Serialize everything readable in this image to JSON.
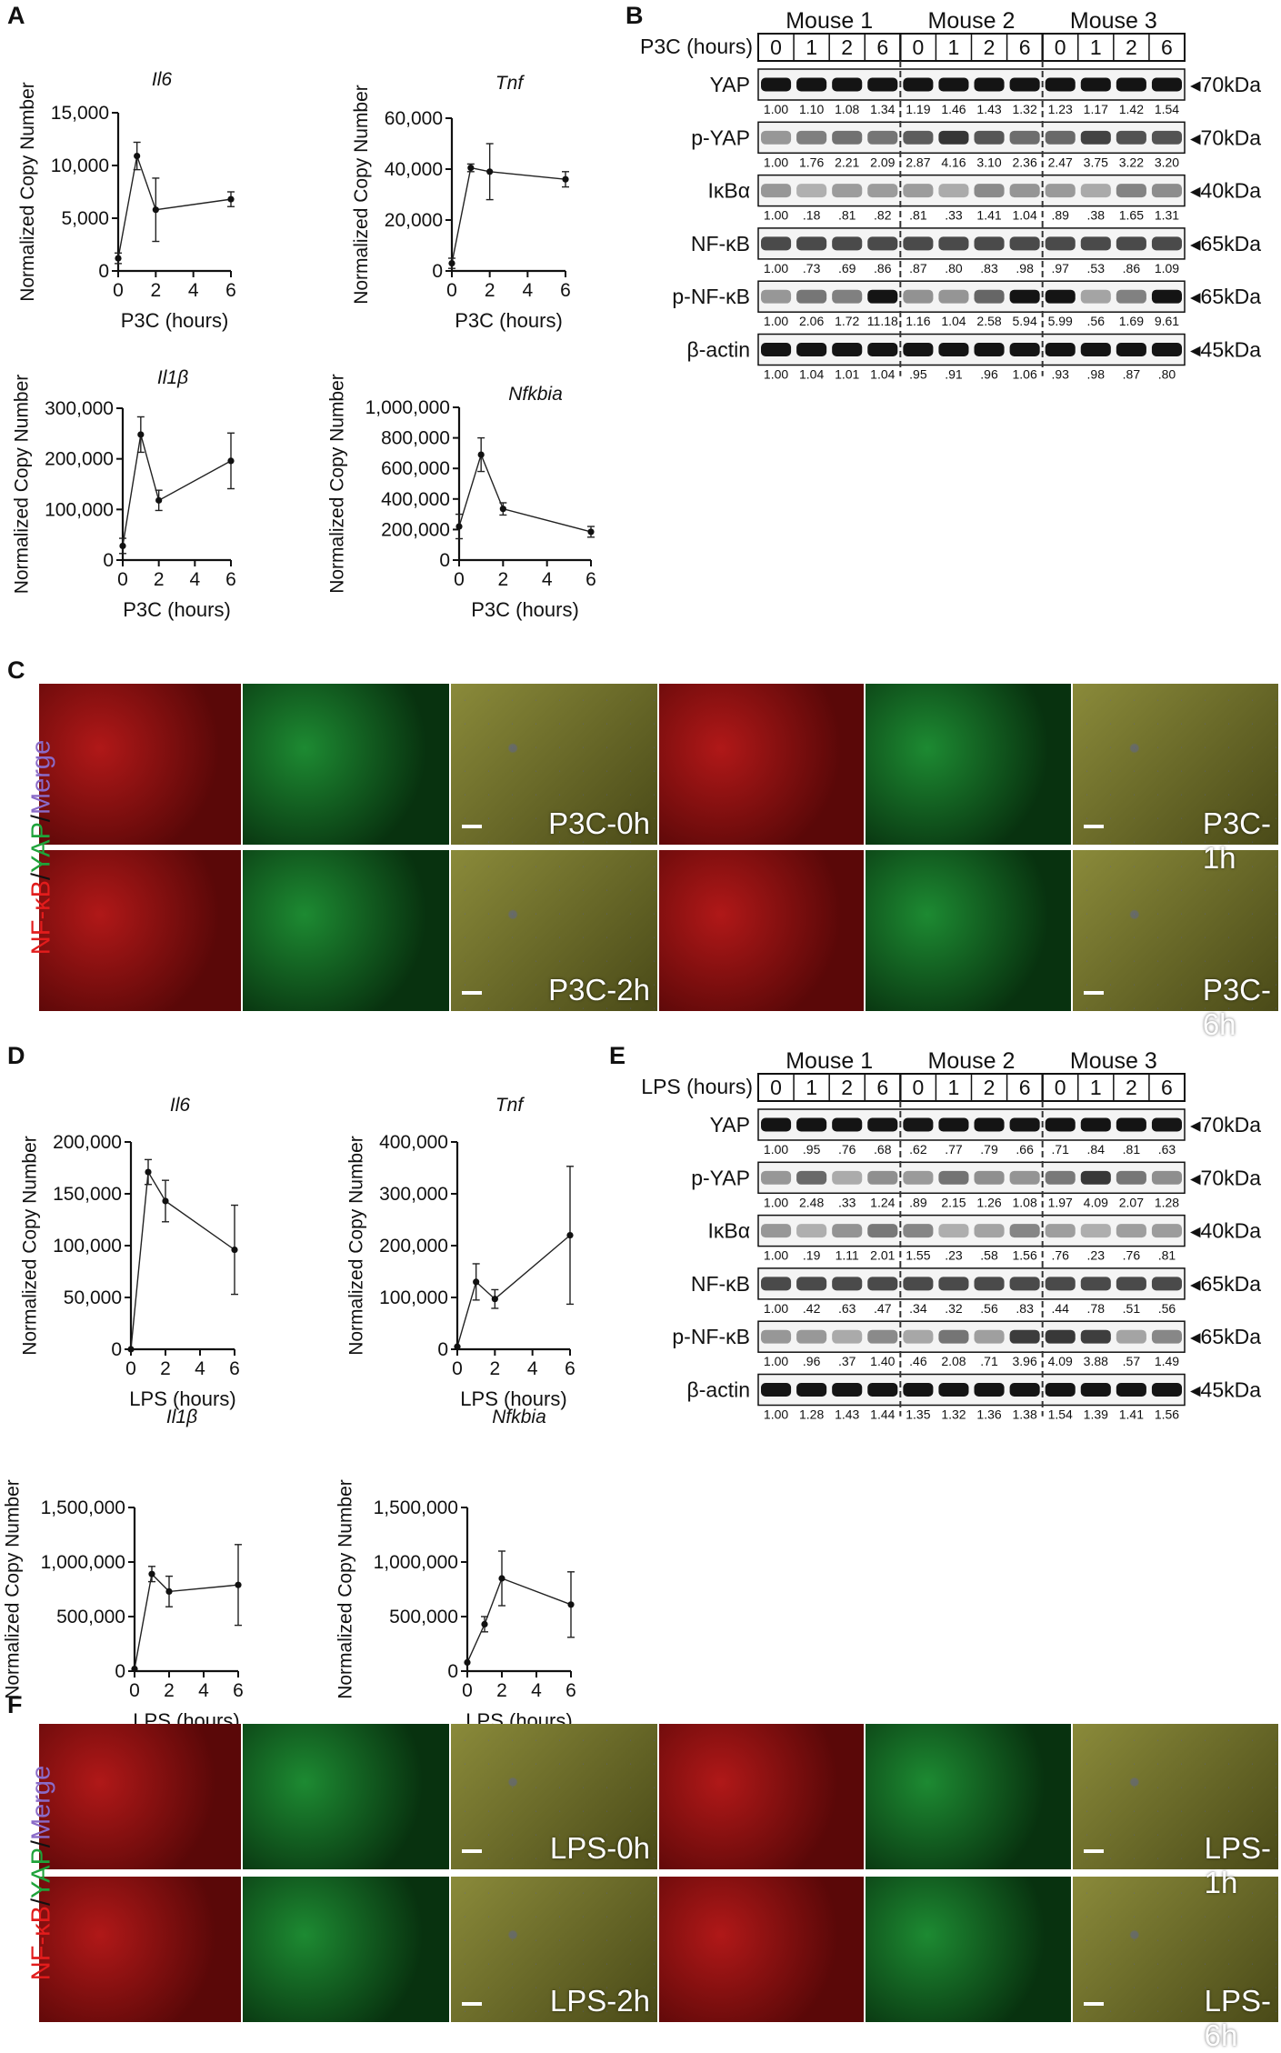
{
  "panel_labels": {
    "A": "A",
    "B": "B",
    "C": "C",
    "D": "D",
    "E": "E",
    "F": "F"
  },
  "colors": {
    "red": "#e21c1c",
    "green": "#1fa33a",
    "purple": "#8a6bc8",
    "dash": "#333333"
  },
  "chart_data": [
    {
      "type": "line",
      "title": "Il6",
      "xlabel": "P3C (hours)",
      "ylabel": "Normalized Copy Number",
      "x": [
        0,
        1,
        2,
        6
      ],
      "values": [
        1200,
        10900,
        5800,
        6800
      ],
      "errors": [
        500,
        1300,
        3000,
        700
      ],
      "ylim": [
        0,
        15000
      ],
      "yticks": [
        "0",
        "5,000",
        "10,000",
        "15,000"
      ],
      "xticks": [
        "0",
        "2",
        "4",
        "6"
      ]
    },
    {
      "type": "line",
      "title": "Tnf",
      "xlabel": "P3C (hours)",
      "ylabel": "Normalized Copy Number",
      "x": [
        0,
        1,
        2,
        6
      ],
      "values": [
        3000,
        40500,
        39000,
        36000
      ],
      "errors": [
        2000,
        1500,
        11000,
        3000
      ],
      "ylim": [
        0,
        60000
      ],
      "yticks": [
        "0",
        "20,000",
        "40,000",
        "60,000"
      ],
      "xticks": [
        "0",
        "2",
        "4",
        "6"
      ]
    },
    {
      "type": "line",
      "title": "Il1β",
      "xlabel": "P3C (hours)",
      "ylabel": "Normalized Copy Number",
      "x": [
        0,
        1,
        2,
        6
      ],
      "values": [
        28000,
        248000,
        118000,
        196000
      ],
      "errors": [
        15000,
        35000,
        20000,
        55000
      ],
      "ylim": [
        0,
        300000
      ],
      "yticks": [
        "0",
        "100,000",
        "200,000",
        "300,000"
      ],
      "xticks": [
        "0",
        "2",
        "4",
        "6"
      ]
    },
    {
      "type": "line",
      "title": "Nfkbia",
      "xlabel": "P3C (hours)",
      "ylabel": "Normalized Copy Number",
      "x": [
        0,
        1,
        2,
        6
      ],
      "values": [
        220000,
        690000,
        335000,
        185000
      ],
      "errors": [
        80000,
        110000,
        40000,
        35000
      ],
      "ylim": [
        0,
        1000000
      ],
      "yticks": [
        "0",
        "200,000",
        "400,000",
        "600,000",
        "800,000",
        "1,000,000"
      ],
      "xticks": [
        "0",
        "2",
        "4",
        "6"
      ]
    },
    {
      "type": "line",
      "title": "Il6",
      "xlabel": "LPS (hours)",
      "ylabel": "Normalized Copy Number",
      "x": [
        0,
        1,
        2,
        6
      ],
      "values": [
        0,
        171000,
        143000,
        96000
      ],
      "errors": [
        0,
        12000,
        20000,
        43000
      ],
      "ylim": [
        0,
        200000
      ],
      "yticks": [
        "0",
        "50,000",
        "100,000",
        "150,000",
        "200,000"
      ],
      "xticks": [
        "0",
        "2",
        "4",
        "6"
      ]
    },
    {
      "type": "line",
      "title": "Tnf",
      "xlabel": "LPS (hours)",
      "ylabel": "Normalized Copy Number",
      "x": [
        0,
        1,
        2,
        6
      ],
      "values": [
        5000,
        130000,
        97000,
        220000
      ],
      "errors": [
        0,
        35000,
        18000,
        133000
      ],
      "ylim": [
        0,
        400000
      ],
      "yticks": [
        "0",
        "100,000",
        "200,000",
        "300,000",
        "400,000"
      ],
      "xticks": [
        "0",
        "2",
        "4",
        "6"
      ]
    },
    {
      "type": "line",
      "title": "Il1β",
      "xlabel": "LPS (hours)",
      "ylabel": "Normalized Copy Number",
      "x": [
        0,
        1,
        2,
        6
      ],
      "values": [
        20000,
        890000,
        730000,
        790000
      ],
      "errors": [
        0,
        70000,
        140000,
        370000
      ],
      "ylim": [
        0,
        1500000
      ],
      "yticks": [
        "0",
        "500,000",
        "1,000,000",
        "1,500,000"
      ],
      "xticks": [
        "0",
        "2",
        "4",
        "6"
      ]
    },
    {
      "type": "line",
      "title": "Nfkbia",
      "xlabel": "LPS (hours)",
      "ylabel": "Normalized Copy Number",
      "x": [
        0,
        1,
        2,
        6
      ],
      "values": [
        80000,
        430000,
        850000,
        610000
      ],
      "errors": [
        0,
        70000,
        250000,
        300000
      ],
      "ylim": [
        0,
        1500000
      ],
      "yticks": [
        "0",
        "500,000",
        "1,000,000",
        "1,500,000"
      ],
      "xticks": [
        "0",
        "2",
        "4",
        "6"
      ]
    }
  ],
  "blots": [
    {
      "header_label": "P3C (hours)",
      "mice": [
        "Mouse 1",
        "Mouse 2",
        "Mouse 3"
      ],
      "lanes": [
        "0",
        "1",
        "2",
        "6",
        "0",
        "1",
        "2",
        "6",
        "0",
        "1",
        "2",
        "6"
      ],
      "rows": [
        {
          "name": "YAP",
          "kda": "◂70kDa",
          "quant": [
            "1.00",
            "1.10",
            "1.08",
            "1.34",
            "1.19",
            "1.46",
            "1.43",
            "1.32",
            "1.23",
            "1.17",
            "1.42",
            "1.54"
          ]
        },
        {
          "name": "p-YAP",
          "kda": "◂70kDa",
          "quant": [
            "1.00",
            "1.76",
            "2.21",
            "2.09",
            "2.87",
            "4.16",
            "3.10",
            "2.36",
            "2.47",
            "3.75",
            "3.22",
            "3.20"
          ]
        },
        {
          "name": "IκBα",
          "kda": "◂40kDa",
          "quant": [
            "1.00",
            ".18",
            ".81",
            ".82",
            ".81",
            ".33",
            "1.41",
            "1.04",
            ".89",
            ".38",
            "1.65",
            "1.31"
          ]
        },
        {
          "name": "NF-κB",
          "kda": "◂65kDa",
          "quant": [
            "1.00",
            ".73",
            ".69",
            ".86",
            ".87",
            ".80",
            ".83",
            ".98",
            ".97",
            ".53",
            ".86",
            "1.09"
          ]
        },
        {
          "name": "p-NF-κB",
          "kda": "◂65kDa",
          "quant": [
            "1.00",
            "2.06",
            "1.72",
            "11.18",
            "1.16",
            "1.04",
            "2.58",
            "5.94",
            "5.99",
            ".56",
            "1.69",
            "9.61"
          ]
        },
        {
          "name": "β-actin",
          "kda": "◂45kDa",
          "quant": [
            "1.00",
            "1.04",
            "1.01",
            "1.04",
            ".95",
            ".91",
            ".96",
            "1.06",
            ".93",
            ".98",
            ".87",
            ".80"
          ]
        }
      ]
    },
    {
      "header_label": "LPS (hours)",
      "mice": [
        "Mouse 1",
        "Mouse 2",
        "Mouse 3"
      ],
      "lanes": [
        "0",
        "1",
        "2",
        "6",
        "0",
        "1",
        "2",
        "6",
        "0",
        "1",
        "2",
        "6"
      ],
      "rows": [
        {
          "name": "YAP",
          "kda": "◂70kDa",
          "quant": [
            "1.00",
            ".95",
            ".76",
            ".68",
            ".62",
            ".77",
            ".79",
            ".66",
            ".71",
            ".84",
            ".81",
            ".63"
          ]
        },
        {
          "name": "p-YAP",
          "kda": "◂70kDa",
          "quant": [
            "1.00",
            "2.48",
            ".33",
            "1.24",
            ".89",
            "2.15",
            "1.26",
            "1.08",
            "1.97",
            "4.09",
            "2.07",
            "1.28"
          ]
        },
        {
          "name": "IκBα",
          "kda": "◂40kDa",
          "quant": [
            "1.00",
            ".19",
            "1.11",
            "2.01",
            "1.55",
            ".23",
            ".58",
            "1.56",
            ".76",
            ".23",
            ".76",
            ".81"
          ]
        },
        {
          "name": "NF-κB",
          "kda": "◂65kDa",
          "quant": [
            "1.00",
            ".42",
            ".63",
            ".47",
            ".34",
            ".32",
            ".56",
            ".83",
            ".44",
            ".78",
            ".51",
            ".56"
          ]
        },
        {
          "name": "p-NF-κB",
          "kda": "◂65kDa",
          "quant": [
            "1.00",
            ".96",
            ".37",
            "1.40",
            ".46",
            "2.08",
            ".71",
            "3.96",
            "4.09",
            "3.88",
            ".57",
            "1.49"
          ]
        },
        {
          "name": "β-actin",
          "kda": "◂45kDa",
          "quant": [
            "1.00",
            "1.28",
            "1.43",
            "1.44",
            "1.35",
            "1.32",
            "1.36",
            "1.38",
            "1.54",
            "1.39",
            "1.41",
            "1.56"
          ]
        }
      ]
    }
  ],
  "microscopy": [
    {
      "stain": {
        "a": "NF-κB",
        "s1": "/",
        "b": "YAP",
        "s2": "/",
        "c": "Merge"
      },
      "tags": [
        "P3C-0h",
        "P3C-1h",
        "P3C-2h",
        "P3C-6h"
      ]
    },
    {
      "stain": {
        "a": "NF-κB",
        "s1": "/",
        "b": "YAP",
        "s2": "/",
        "c": "Merge"
      },
      "tags": [
        "LPS-0h",
        "LPS-1h",
        "LPS-2h",
        "LPS-6h"
      ]
    }
  ]
}
